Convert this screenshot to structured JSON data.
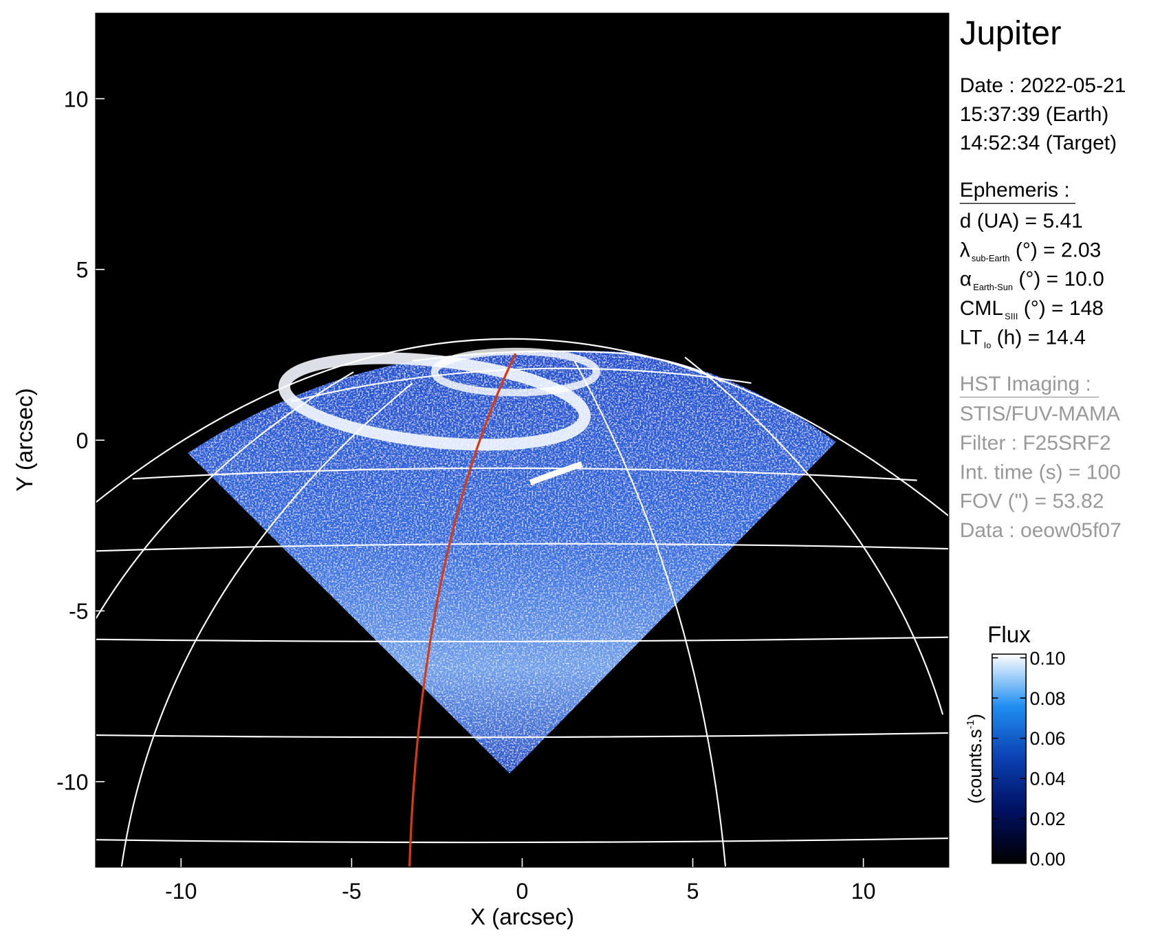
{
  "chart_data": {
    "type": "image",
    "title": "Jupiter",
    "x_label": "X (arcsec)",
    "y_label": "Y (arcsec)",
    "xlim": [
      -12.5,
      12.5
    ],
    "ylim": [
      -12.5,
      12.5
    ],
    "xticks": [
      -10,
      -5,
      0,
      5,
      10
    ],
    "yticks": [
      -10,
      -5,
      0,
      5,
      10
    ],
    "colorbar": {
      "label": "Flux",
      "unit": "(counts.s",
      "unit_sup": "-1",
      "unit_end": ")",
      "lim": [
        0,
        0.1
      ],
      "ticks": [
        {
          "value": 0,
          "label": "0.00"
        },
        0.02,
        0.04,
        0.06,
        0.08,
        {
          "value": 0.1,
          "label": "0.10"
        }
      ]
    },
    "info": {
      "date": [
        "Date : 2022-05-21",
        "15:37:39 (Earth)",
        "14:52:34 (Target)"
      ],
      "ephemeris_title": "Ephemeris :",
      "ephemeris": [
        {
          "main": "d (UA)    = 5.41"
        },
        {
          "main": "λ",
          "sub": "sub-Earth",
          "rest": " (°) = 2.03"
        },
        {
          "main": "α",
          "sub": "Earth-Sun",
          "rest": " (°) = 10.0"
        },
        {
          "main": "CML",
          "sub": "SIII",
          "rest": " (°) = 148"
        },
        {
          "main": "LT",
          "sub": "Io",
          "rest": " (h) = 14.4"
        }
      ],
      "imaging_title": "HST Imaging :",
      "imaging": [
        "STIS/FUV-MAMA",
        "Filter : F25SRF2",
        "Int. time (s) = 100",
        "FOV (\") = 53.82",
        "Data : oeow05f07"
      ]
    }
  }
}
